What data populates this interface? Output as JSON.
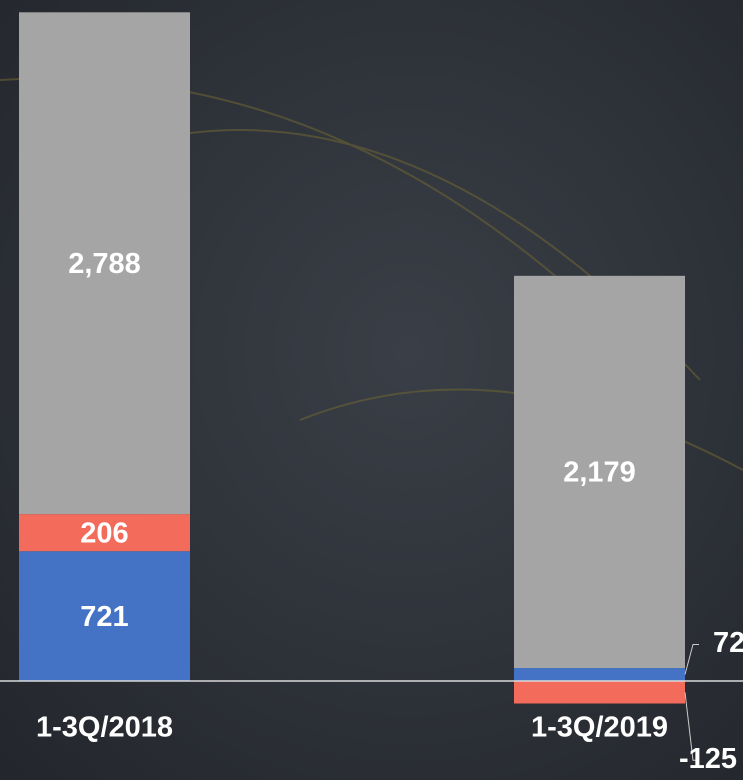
{
  "chart_data": {
    "type": "stacked-bar",
    "categories": [
      "1-3Q/2018",
      "1-3Q/2019"
    ],
    "series": [
      {
        "color": "#4472c4",
        "values": [
          721,
          72
        ]
      },
      {
        "color": "#f26b5b",
        "values": [
          206,
          -125
        ]
      },
      {
        "color": "#a5a5a5",
        "values": [
          2788,
          2179
        ],
        "value_labels": [
          "2,788",
          "2,179"
        ]
      }
    ],
    "ylim": [
      -200,
      3750
    ]
  }
}
